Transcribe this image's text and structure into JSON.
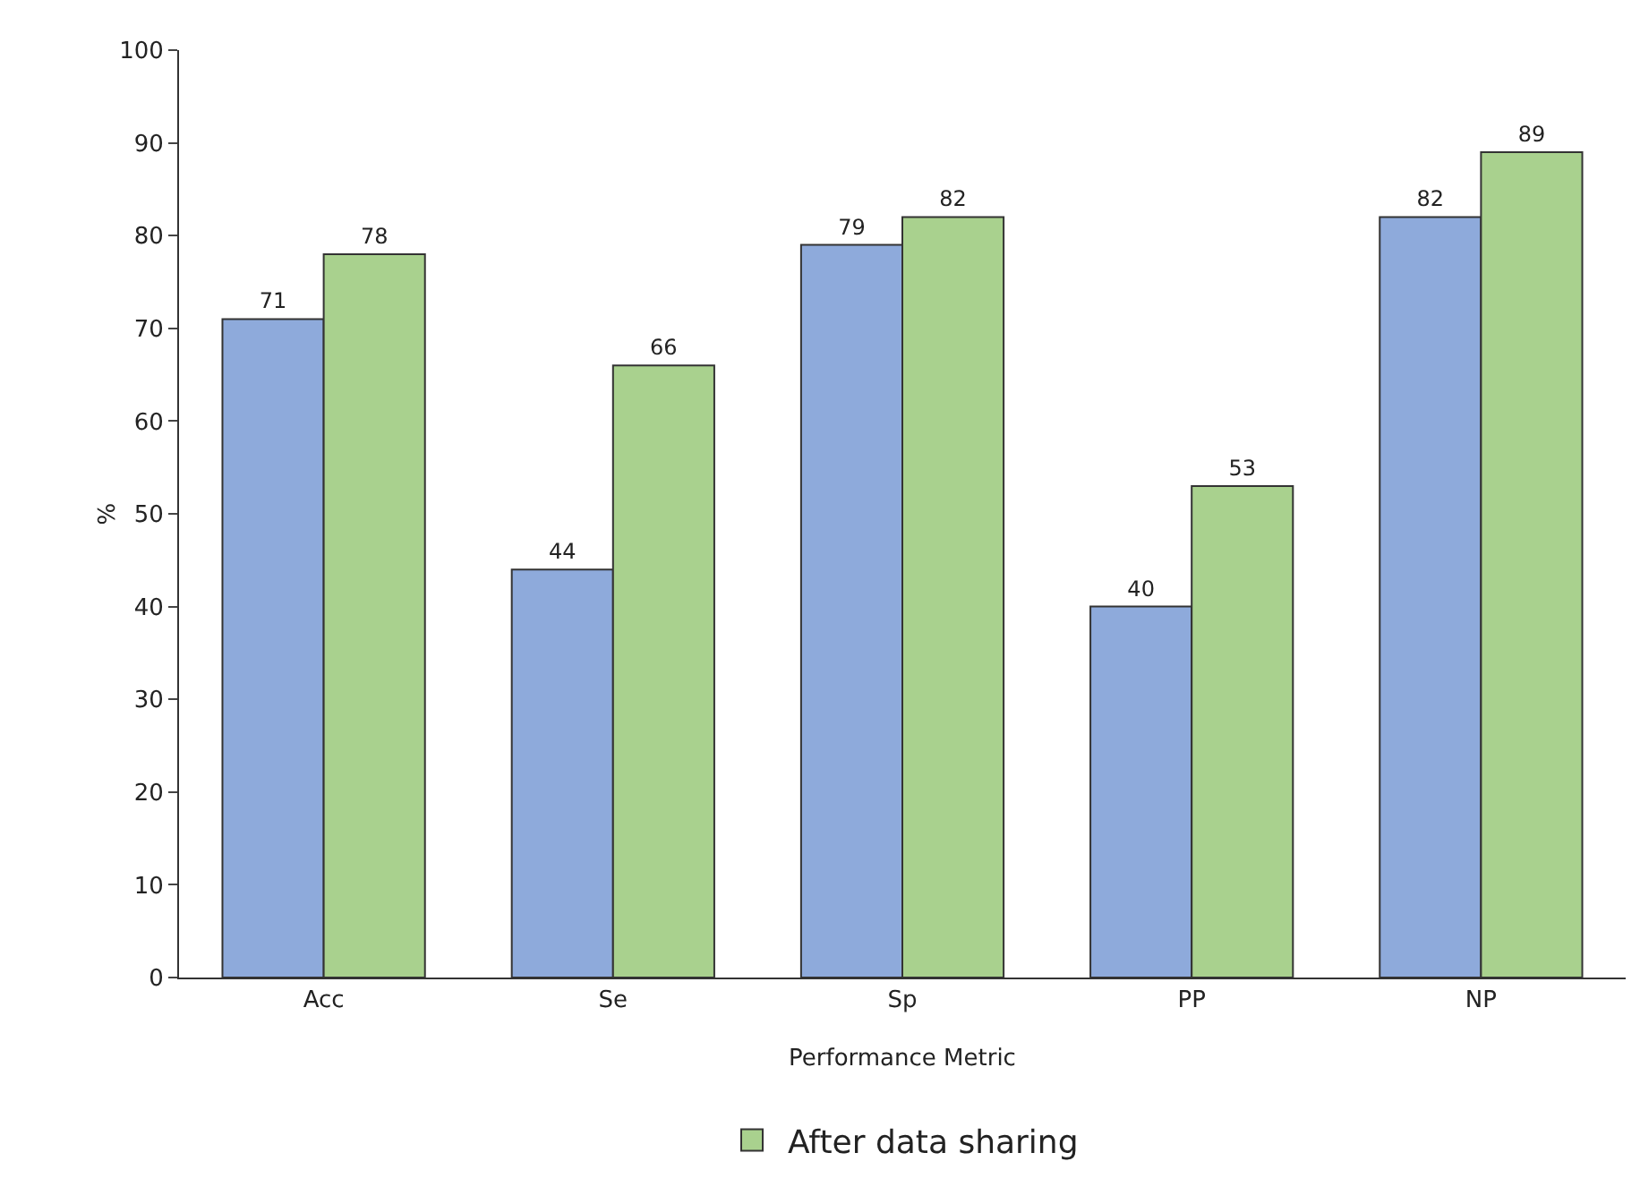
{
  "chart_data": {
    "type": "bar",
    "xlabel": "Performance Metric",
    "ylabel": "%",
    "categories": [
      "Acc",
      "Se",
      "Sp",
      "PP",
      "NP"
    ],
    "series": [
      {
        "color": "#8eaadb",
        "values": [
          71,
          44,
          79,
          40,
          82
        ]
      },
      {
        "name": "After data sharing",
        "color": "#a9d18e",
        "values": [
          78,
          66,
          82,
          53,
          89
        ]
      }
    ],
    "ylim": [
      0,
      100
    ],
    "yticks": [
      0,
      10,
      20,
      30,
      40,
      50,
      60,
      70,
      80,
      90,
      100
    ],
    "grid": false,
    "legend": "bottom",
    "data_labels": true
  }
}
